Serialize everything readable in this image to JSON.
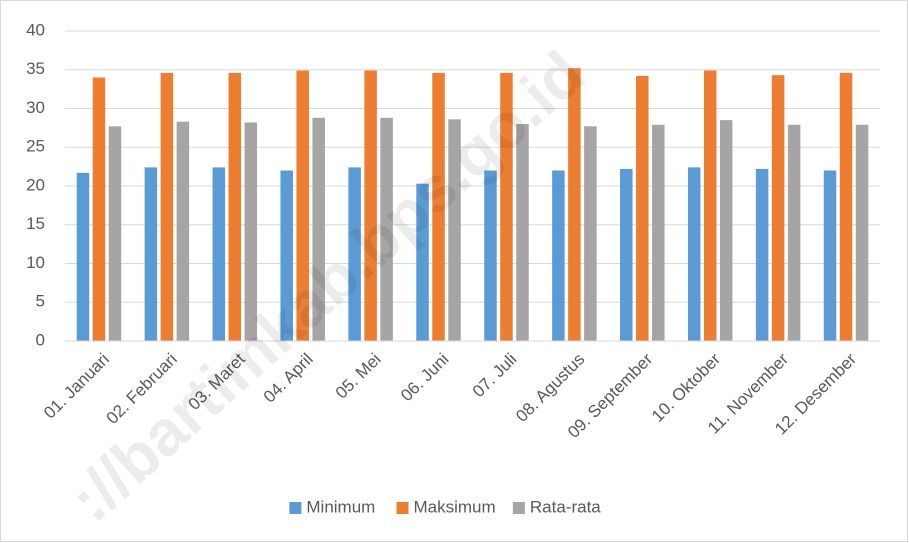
{
  "chart_data": {
    "type": "bar",
    "watermark": "://bartimkab.bps.go.id",
    "categories": [
      "01. Januari",
      "02. Februari",
      "03. Maret",
      "04. April",
      "05. Mei",
      "06. Juni",
      "07. Juli",
      "08. Agustus",
      "09. September",
      "10. Oktober",
      "11. November",
      "12. Desember"
    ],
    "series": [
      {
        "name": "Minimum",
        "color": "#5b9bd5",
        "values": [
          21.7,
          22.4,
          22.4,
          22.0,
          22.4,
          20.3,
          22.0,
          22.0,
          22.2,
          22.4,
          22.2,
          22.0
        ]
      },
      {
        "name": "Maksimum",
        "color": "#ed7d31",
        "values": [
          34.0,
          34.6,
          34.6,
          34.9,
          34.9,
          34.6,
          34.6,
          35.2,
          34.2,
          34.9,
          34.3,
          34.6
        ]
      },
      {
        "name": "Rata-rata",
        "color": "#a5a5a5",
        "values": [
          27.7,
          28.3,
          28.2,
          28.8,
          28.8,
          28.6,
          28.0,
          27.7,
          27.9,
          28.5,
          27.9,
          27.9
        ]
      }
    ],
    "ylim": [
      0,
      40
    ],
    "yticks": [
      0,
      5,
      10,
      15,
      20,
      25,
      30,
      35,
      40
    ],
    "grid": true,
    "legend": "bottom"
  }
}
